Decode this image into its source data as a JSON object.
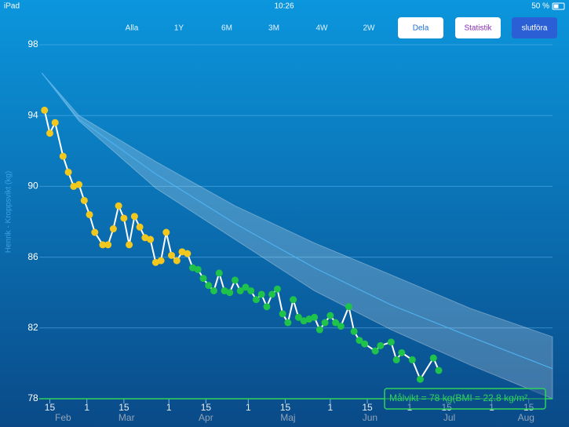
{
  "status_bar": {
    "carrier": "iPad",
    "time": "10:26",
    "battery": "50 %"
  },
  "range_buttons": [
    "Alla",
    "1Y",
    "6M",
    "3M",
    "4W",
    "2W"
  ],
  "action_buttons": [
    "Dela",
    "Statistik",
    "slutföra"
  ],
  "chart_data": {
    "type": "line",
    "y_label": "Henrik - Kroppsvikt (kg)",
    "ylim": [
      78,
      98
    ],
    "yticks": [
      78,
      82,
      86,
      90,
      94,
      98
    ],
    "xlim": [
      "02-11",
      "08-24"
    ],
    "xticks": [
      {
        "value": "02-15",
        "label": "15"
      },
      {
        "value": "03-01",
        "label": "1"
      },
      {
        "value": "03-15",
        "label": "15"
      },
      {
        "value": "04-01",
        "label": "1"
      },
      {
        "value": "04-15",
        "label": "15"
      },
      {
        "value": "05-01",
        "label": "1"
      },
      {
        "value": "05-15",
        "label": "15"
      },
      {
        "value": "06-01",
        "label": "1"
      },
      {
        "value": "06-15",
        "label": "15"
      },
      {
        "value": "07-01",
        "label": "1"
      },
      {
        "value": "07-15",
        "label": "15"
      },
      {
        "value": "08-01",
        "label": "1"
      },
      {
        "value": "08-15",
        "label": "15"
      }
    ],
    "month_labels": [
      {
        "value": "02-20",
        "label": "Feb"
      },
      {
        "value": "03-16",
        "label": "Mar"
      },
      {
        "value": "04-15",
        "label": "Apr"
      },
      {
        "value": "05-16",
        "label": "Maj"
      },
      {
        "value": "06-16",
        "label": "Jun"
      },
      {
        "value": "07-16",
        "label": "Jul"
      },
      {
        "value": "08-14",
        "label": "Aug"
      }
    ],
    "grid": true,
    "line_color": "#ffffff",
    "series": [
      {
        "color": "#f2c81e",
        "x": [
          "02-13",
          "02-15",
          "02-17",
          "02-20",
          "02-22",
          "02-24",
          "02-26",
          "02-28",
          "03-02",
          "03-04",
          "03-07",
          "03-09",
          "03-11",
          "03-13",
          "03-15",
          "03-17",
          "03-19",
          "03-21",
          "03-23",
          "03-25",
          "03-27",
          "03-29",
          "03-31",
          "04-02",
          "04-04",
          "04-06",
          "04-08"
        ],
        "values": [
          94.3,
          93.0,
          93.6,
          91.7,
          90.8,
          90.0,
          90.1,
          89.2,
          88.4,
          87.4,
          86.7,
          86.7,
          87.6,
          88.9,
          88.2,
          86.7,
          88.3,
          87.7,
          87.1,
          87.0,
          85.7,
          85.8,
          87.4,
          86.1,
          85.8,
          86.3,
          86.2
        ]
      },
      {
        "color": "#1fc24a",
        "x": [
          "04-10",
          "04-12",
          "04-14",
          "04-16",
          "04-18",
          "04-20",
          "04-22",
          "04-24",
          "04-26",
          "04-28",
          "04-30",
          "05-02",
          "05-04",
          "05-06",
          "05-08",
          "05-10",
          "05-12",
          "05-14",
          "05-16",
          "05-18",
          "05-20",
          "05-22",
          "05-24",
          "05-26",
          "05-28",
          "05-30",
          "06-01",
          "06-03",
          "06-05",
          "06-08",
          "06-10",
          "06-12",
          "06-14",
          "06-18",
          "06-20",
          "06-24",
          "06-26",
          "06-28",
          "07-02",
          "07-05",
          "07-10",
          "07-12"
        ],
        "values": [
          85.4,
          85.3,
          84.8,
          84.4,
          84.1,
          85.1,
          84.1,
          84.0,
          84.7,
          84.1,
          84.3,
          84.1,
          83.6,
          83.9,
          83.2,
          83.9,
          84.2,
          82.8,
          82.3,
          83.6,
          82.6,
          82.4,
          82.5,
          82.6,
          81.9,
          82.3,
          82.7,
          82.3,
          82.1,
          83.2,
          81.8,
          81.3,
          81.1,
          80.7,
          81.0,
          81.2,
          80.2,
          80.6,
          80.2,
          79.1,
          80.3,
          79.6
        ]
      }
    ],
    "projection": {
      "color": "#ffffff",
      "x": [
        "02-12",
        "02-26",
        "03-27",
        "04-26",
        "05-26",
        "06-24",
        "07-24",
        "08-24"
      ],
      "upper": [
        96.4,
        94.0,
        91.4,
        88.9,
        86.8,
        85.0,
        83.1,
        81.5
      ],
      "center": [
        96.4,
        93.8,
        90.7,
        87.9,
        85.4,
        83.3,
        81.5,
        79.7
      ],
      "lower": [
        96.4,
        93.7,
        89.9,
        87.0,
        84.1,
        81.9,
        79.9,
        78.0
      ]
    },
    "goal": {
      "value": 78,
      "label": "Målvikt = 78 kg(BMI = 22.8 kg/m²",
      "color": "#2fd35a"
    }
  }
}
